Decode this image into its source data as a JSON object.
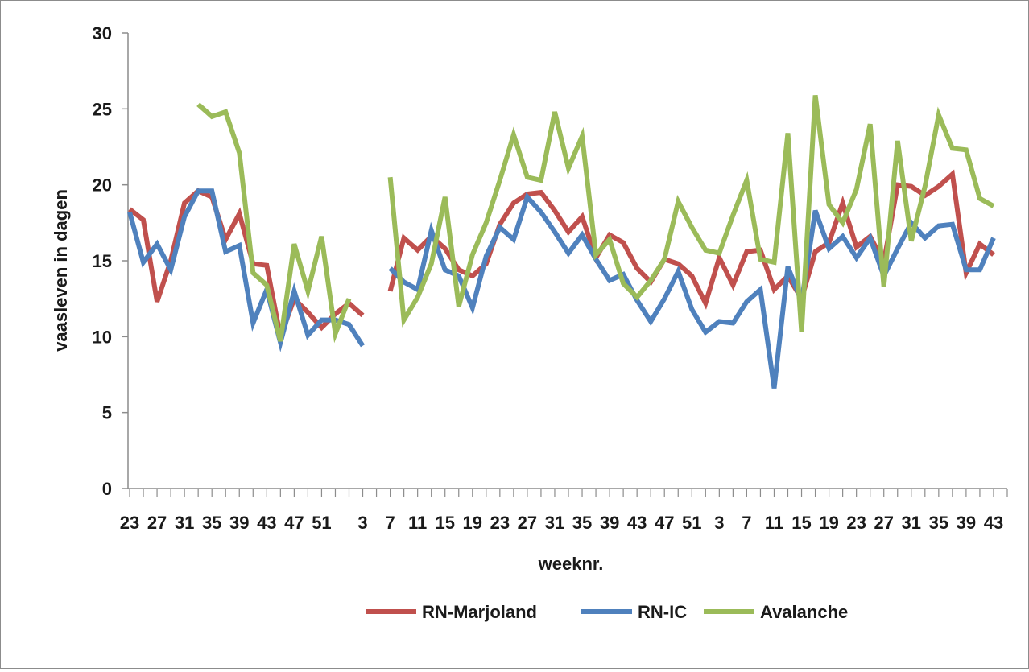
{
  "chart_data": {
    "type": "line",
    "title": "",
    "xlabel": "weeknr.",
    "ylabel": "vaasleven in dagen",
    "ylim": [
      0,
      30
    ],
    "yticks": [
      0,
      5,
      10,
      15,
      20,
      25,
      30
    ],
    "grid": false,
    "legend_position": "bottom",
    "xtick_labels": [
      "23",
      "27",
      "31",
      "35",
      "39",
      "43",
      "47",
      "51",
      "3",
      "7",
      "11",
      "15",
      "19",
      "23",
      "27",
      "31",
      "35",
      "39",
      "43",
      "47",
      "51",
      "3",
      "7",
      "11",
      "15",
      "19",
      "23",
      "27",
      "31",
      "35",
      "39",
      "43"
    ],
    "xtick_label_positions": [
      0,
      2,
      4,
      6,
      8,
      10,
      12,
      14,
      17,
      19,
      21,
      23,
      25,
      27,
      29,
      31,
      33,
      35,
      37,
      39,
      41,
      43,
      45,
      47,
      49,
      51,
      53,
      55,
      57,
      59,
      61,
      63
    ],
    "n_points": 65,
    "series": [
      {
        "name": "RN-Marjoland",
        "color": "#c0504d",
        "values": [
          18.4,
          17.7,
          12.3,
          15.0,
          18.8,
          19.6,
          19.2,
          16.4,
          18.1,
          14.8,
          14.7,
          10.0,
          12.5,
          11.6,
          10.6,
          11.5,
          12.2,
          11.4,
          null,
          13.0,
          16.5,
          15.7,
          16.6,
          15.8,
          14.4,
          14.0,
          14.8,
          17.4,
          18.8,
          19.4,
          19.5,
          18.3,
          16.9,
          17.9,
          15.2,
          16.7,
          16.2,
          14.5,
          13.6,
          15.1,
          14.8,
          14.0,
          12.2,
          15.2,
          13.4,
          15.6,
          15.7,
          13.1,
          14.0,
          12.5,
          15.6,
          16.2,
          18.8,
          15.9,
          16.6,
          14.9,
          20.0,
          19.9,
          19.3,
          19.9,
          20.7,
          14.2,
          16.1,
          15.4,
          null
        ],
        "values_note": ""
      },
      {
        "name": "RN-IC",
        "color": "#4f81bd",
        "values": [
          18.2,
          14.9,
          16.1,
          14.4,
          17.9,
          19.6,
          19.6,
          15.6,
          16.0,
          10.9,
          13.1,
          9.6,
          13.0,
          10.1,
          11.1,
          11.1,
          10.8,
          9.4,
          null,
          14.5,
          13.6,
          13.1,
          17.0,
          14.4,
          14.0,
          11.9,
          15.3,
          17.2,
          16.4,
          19.2,
          18.2,
          16.9,
          15.5,
          16.7,
          15.1,
          13.7,
          14.1,
          12.4,
          11.0,
          12.5,
          14.3,
          11.8,
          10.3,
          11.0,
          10.9,
          12.3,
          13.1,
          6.6,
          14.6,
          12.3,
          18.3,
          15.8,
          16.6,
          15.2,
          16.5,
          14.0,
          15.8,
          17.5,
          16.5,
          17.3,
          17.4,
          14.4,
          14.4,
          16.5,
          null
        ]
      },
      {
        "name": "Avalanche",
        "color": "#9bbb59",
        "values": [
          null,
          null,
          null,
          null,
          null,
          25.3,
          24.5,
          24.8,
          22.1,
          14.2,
          13.4,
          9.7,
          16.1,
          13.0,
          16.6,
          10.2,
          12.5,
          null,
          null,
          20.5,
          11.1,
          12.6,
          14.8,
          19.2,
          12.0,
          15.4,
          17.5,
          20.3,
          23.3,
          20.5,
          20.3,
          24.8,
          21.1,
          23.2,
          15.4,
          16.4,
          13.5,
          12.6,
          13.7,
          15.1,
          18.9,
          17.2,
          15.7,
          15.5,
          18.0,
          20.3,
          15.1,
          14.9,
          23.4,
          10.3,
          25.9,
          18.7,
          17.5,
          19.7,
          24.0,
          13.3,
          22.9,
          16.3,
          19.9,
          24.6,
          22.4,
          22.3,
          19.1,
          18.6,
          null
        ]
      }
    ]
  }
}
